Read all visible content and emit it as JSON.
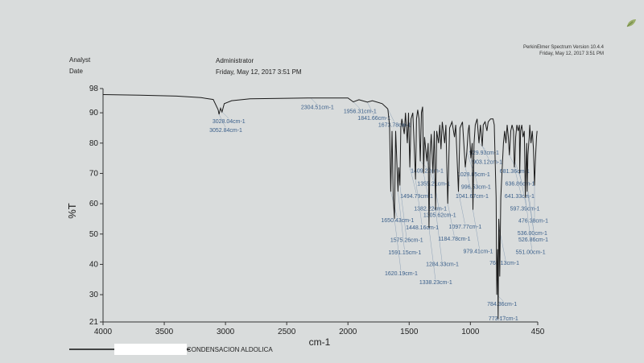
{
  "header": {
    "software_line1": "PerkinElmer Spectrum Version 10.4.4",
    "software_line2": "Friday, May 12, 2017 3:51 PM",
    "analyst_label": "Analyst",
    "date_label": "Date",
    "analyst_value": "Administrator",
    "date_value": "Friday, May 12, 2017 3:51 PM"
  },
  "legend": {
    "sample_name": "CONDENSACION ALDOLICA",
    "line_color": "#111111",
    "redaction_color": "#ffffff"
  },
  "icons": {
    "corner": "leaf-icon"
  },
  "chart_data": {
    "type": "line",
    "title": "",
    "xlabel": "cm-1",
    "ylabel": "%T",
    "xlim": [
      4000,
      450
    ],
    "ylim": [
      21,
      98
    ],
    "x_reversed": true,
    "grid": false,
    "colors": {
      "spectrum": "#1a1a1a",
      "peak_label": "#3a5f8a",
      "axis": "#333333"
    },
    "x_ticks": [
      4000,
      3500,
      3000,
      2500,
      2000,
      1500,
      1000,
      450
    ],
    "y_ticks": [
      21,
      30,
      40,
      50,
      60,
      70,
      80,
      90,
      98
    ],
    "series": [
      {
        "values": [
          [
            4000,
            96.0
          ],
          [
            3700,
            95.8
          ],
          [
            3400,
            95.5
          ],
          [
            3200,
            95.0
          ],
          [
            3100,
            94.4
          ],
          [
            3060,
            91.0
          ],
          [
            3052.84,
            89.5
          ],
          [
            3040,
            91.5
          ],
          [
            3028.04,
            90.3
          ],
          [
            3010,
            93.0
          ],
          [
            2950,
            94.0
          ],
          [
            2800,
            94.6
          ],
          [
            2500,
            94.8
          ],
          [
            2304.51,
            94.9
          ],
          [
            2200,
            94.9
          ],
          [
            2000,
            94.9
          ],
          [
            1956.31,
            93.6
          ],
          [
            1910,
            94.3
          ],
          [
            1841.66,
            93.5
          ],
          [
            1800,
            94.0
          ],
          [
            1720,
            93.0
          ],
          [
            1680,
            91.5
          ],
          [
            1673.78,
            91.2
          ],
          [
            1660,
            86.0
          ],
          [
            1650.43,
            64.0
          ],
          [
            1640,
            84.0
          ],
          [
            1630,
            62.0
          ],
          [
            1620.19,
            55.0
          ],
          [
            1610,
            84.0
          ],
          [
            1591.15,
            64.0
          ],
          [
            1585,
            72.0
          ],
          [
            1575.26,
            66.0
          ],
          [
            1568,
            85.0
          ],
          [
            1560,
            88.0
          ],
          [
            1540,
            83.0
          ],
          [
            1530,
            90.0
          ],
          [
            1515,
            80.0
          ],
          [
            1505,
            90.0
          ],
          [
            1494.79,
            72.0
          ],
          [
            1485,
            88.0
          ],
          [
            1470,
            90.0
          ],
          [
            1460,
            80.0
          ],
          [
            1448.16,
            68.0
          ],
          [
            1440,
            88.0
          ],
          [
            1430,
            91.0
          ],
          [
            1420,
            88.0
          ],
          [
            1409.22,
            74.0
          ],
          [
            1400,
            90.0
          ],
          [
            1390,
            92.0
          ],
          [
            1382.22,
            70.0
          ],
          [
            1374,
            82.0
          ],
          [
            1355.21,
            74.0
          ],
          [
            1345,
            80.0
          ],
          [
            1338.23,
            52.0
          ],
          [
            1330,
            76.0
          ],
          [
            1320,
            83.0
          ],
          [
            1305.62,
            70.0
          ],
          [
            1295,
            84.0
          ],
          [
            1284.33,
            58.0
          ],
          [
            1275,
            84.0
          ],
          [
            1260,
            80.0
          ],
          [
            1250,
            86.0
          ],
          [
            1240,
            78.0
          ],
          [
            1230,
            87.0
          ],
          [
            1210,
            80.0
          ],
          [
            1200,
            86.0
          ],
          [
            1184.78,
            60.0
          ],
          [
            1170,
            85.0
          ],
          [
            1150,
            87.0
          ],
          [
            1130,
            82.0
          ],
          [
            1120,
            86.0
          ],
          [
            1097.77,
            64.0
          ],
          [
            1085,
            85.0
          ],
          [
            1065,
            87.0
          ],
          [
            1041.67,
            72.0
          ],
          [
            1028.85,
            77.0
          ],
          [
            1018,
            84.0
          ],
          [
            1010,
            86.0
          ],
          [
            996.53,
            75.0
          ],
          [
            985,
            80.0
          ],
          [
            979.41,
            58.0
          ],
          [
            970,
            80.0
          ],
          [
            960,
            86.0
          ],
          [
            945,
            88.0
          ],
          [
            929.93,
            80.0
          ],
          [
            918,
            86.0
          ],
          [
            903.12,
            79.0
          ],
          [
            895,
            86.0
          ],
          [
            880,
            87.0
          ],
          [
            865,
            84.0
          ],
          [
            855,
            87.0
          ],
          [
            835,
            88.0
          ],
          [
            815,
            88.0
          ],
          [
            805,
            86.0
          ],
          [
            795,
            70.0
          ],
          [
            790,
            62.0
          ],
          [
            784.36,
            30.0
          ],
          [
            778,
            45.0
          ],
          [
            773.17,
            22.0
          ],
          [
            768,
            55.0
          ],
          [
            765.13,
            52.0
          ],
          [
            760,
            36.0
          ],
          [
            752,
            62.0
          ],
          [
            740,
            72.0
          ],
          [
            730,
            80.0
          ],
          [
            720,
            84.0
          ],
          [
            710,
            80.0
          ],
          [
            700,
            86.0
          ],
          [
            690,
            82.0
          ],
          [
            681.36,
            76.0
          ],
          [
            670,
            84.0
          ],
          [
            660,
            86.0
          ],
          [
            648,
            84.0
          ],
          [
            641.33,
            72.0
          ],
          [
            636.86,
            74.0
          ],
          [
            630,
            82.0
          ],
          [
            620,
            86.0
          ],
          [
            610,
            84.0
          ],
          [
            600,
            86.0
          ],
          [
            597.39,
            70.0
          ],
          [
            590,
            84.0
          ],
          [
            580,
            86.0
          ],
          [
            570,
            82.0
          ],
          [
            560,
            84.0
          ],
          [
            551.0,
            62.0
          ],
          [
            546,
            72.0
          ],
          [
            540,
            80.0
          ],
          [
            536.0,
            64.0
          ],
          [
            530,
            76.0
          ],
          [
            520,
            82.0
          ],
          [
            515,
            86.0
          ],
          [
            505,
            80.0
          ],
          [
            495,
            84.0
          ],
          [
            485,
            78.0
          ],
          [
            476.38,
            66.0
          ],
          [
            470,
            74.0
          ],
          [
            460,
            82.0
          ],
          [
            455,
            84.0
          ]
        ]
      }
    ],
    "peak_labels": [
      {
        "x": 3052.84,
        "y": 89.5,
        "text": "3052.84cm-1"
      },
      {
        "x": 3028.04,
        "y": 90.3,
        "text": "3028.04cm-1"
      },
      {
        "x": 2304.51,
        "y": 94.9,
        "text": "2304.51cm-1"
      },
      {
        "x": 1956.31,
        "y": 93.6,
        "text": "1956.31cm-1"
      },
      {
        "x": 1841.66,
        "y": 93.5,
        "text": "1841.66cm-1"
      },
      {
        "x": 1673.78,
        "y": 91.2,
        "text": "1673.78cm-1"
      },
      {
        "x": 1650.43,
        "y": 64.0,
        "text": "1650.43cm-1"
      },
      {
        "x": 1620.19,
        "y": 55.0,
        "text": "1620.19cm-1"
      },
      {
        "x": 1591.15,
        "y": 64.0,
        "text": "1591.15cm-1"
      },
      {
        "x": 1575.26,
        "y": 66.0,
        "text": "1575.26cm-1"
      },
      {
        "x": 1494.79,
        "y": 72.0,
        "text": "1494.79cm-1"
      },
      {
        "x": 1448.16,
        "y": 68.0,
        "text": "1448.16cm-1"
      },
      {
        "x": 1409.22,
        "y": 74.0,
        "text": "1409.22cm-1"
      },
      {
        "x": 1382.22,
        "y": 70.0,
        "text": "1382.22cm-1"
      },
      {
        "x": 1355.21,
        "y": 74.0,
        "text": "1355.21cm-1"
      },
      {
        "x": 1338.23,
        "y": 52.0,
        "text": "1338.23cm-1"
      },
      {
        "x": 1305.62,
        "y": 70.0,
        "text": "1305.62cm-1"
      },
      {
        "x": 1284.33,
        "y": 58.0,
        "text": "1284.33cm-1"
      },
      {
        "x": 1184.78,
        "y": 60.0,
        "text": "1184.78cm-1"
      },
      {
        "x": 1097.77,
        "y": 64.0,
        "text": "1097.77cm-1"
      },
      {
        "x": 1041.67,
        "y": 72.0,
        "text": "1041.67cm-1"
      },
      {
        "x": 1028.85,
        "y": 77.0,
        "text": "1028.85cm-1"
      },
      {
        "x": 996.53,
        "y": 75.0,
        "text": "996.53cm-1"
      },
      {
        "x": 979.41,
        "y": 58.0,
        "text": "979.41cm-1"
      },
      {
        "x": 929.93,
        "y": 80.0,
        "text": "929.93cm-1"
      },
      {
        "x": 903.12,
        "y": 79.0,
        "text": "903.12cm-1"
      },
      {
        "x": 784.36,
        "y": 30.0,
        "text": "784.36cm-1"
      },
      {
        "x": 773.17,
        "y": 22.0,
        "text": "773.17cm-1"
      },
      {
        "x": 765.13,
        "y": 52.0,
        "text": "765.13cm-1"
      },
      {
        "x": 681.36,
        "y": 76.0,
        "text": "681.36cm-1"
      },
      {
        "x": 641.33,
        "y": 72.0,
        "text": "641.33cm-1"
      },
      {
        "x": 636.86,
        "y": 74.0,
        "text": "636.86cm-1"
      },
      {
        "x": 597.39,
        "y": 70.0,
        "text": "597.39cm-1"
      },
      {
        "x": 551.0,
        "y": 62.0,
        "text": "551.00cm-1"
      },
      {
        "x": 536.0,
        "y": 64.0,
        "text": "536.00cm-1"
      },
      {
        "x": 526.86,
        "y": 64.0,
        "text": "526.86cm-1"
      },
      {
        "x": 476.38,
        "y": 66.0,
        "text": "476.38cm-1"
      }
    ]
  }
}
